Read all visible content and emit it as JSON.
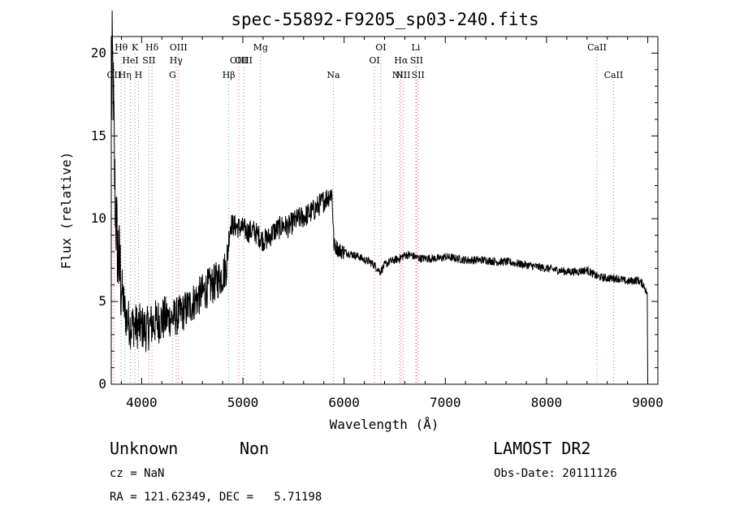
{
  "chart_data": {
    "type": "line",
    "title": "spec-55892-F9205_sp03-240.fits",
    "xlabel": "Wavelength (Å)",
    "ylabel": "Flux (relative)",
    "xlim": [
      3700,
      9100
    ],
    "ylim": [
      0,
      21
    ],
    "xticks": [
      4000,
      5000,
      6000,
      7000,
      8000,
      9000
    ],
    "yticks": [
      0,
      5,
      10,
      15,
      20
    ],
    "grid": false,
    "legend": "none",
    "line_color": "#000000",
    "marker_line_colors": {
      "emission": "#e06060",
      "absorption": "#909090"
    },
    "spectrum_anchors": {
      "x": [
        3700,
        3710,
        3720,
        3735,
        3750,
        3770,
        3790,
        3810,
        3830,
        3850,
        3870,
        3890,
        3920,
        3950,
        3980,
        4010,
        4050,
        4100,
        4150,
        4200,
        4250,
        4300,
        4350,
        4400,
        4450,
        4500,
        4550,
        4600,
        4650,
        4700,
        4750,
        4800,
        4840,
        4860,
        4880,
        4900,
        4950,
        5000,
        5050,
        5100,
        5150,
        5200,
        5250,
        5300,
        5350,
        5400,
        5450,
        5500,
        5550,
        5600,
        5650,
        5700,
        5750,
        5800,
        5850,
        5880,
        5900,
        5920,
        5950,
        6000,
        6050,
        6100,
        6150,
        6200,
        6250,
        6300,
        6340,
        6360,
        6400,
        6450,
        6500,
        6550,
        6600,
        6650,
        6700,
        6750,
        6800,
        6850,
        6900,
        6950,
        7000,
        7100,
        7200,
        7300,
        7400,
        7500,
        7600,
        7700,
        7800,
        7900,
        8000,
        8100,
        8200,
        8300,
        8400,
        8500,
        8600,
        8700,
        8800,
        8900,
        8960,
        8990,
        9000
      ],
      "y": [
        16.0,
        20.0,
        17.5,
        12.0,
        9.5,
        7.5,
        6.5,
        5.5,
        4.5,
        4.0,
        3.8,
        3.5,
        3.6,
        3.5,
        3.5,
        3.4,
        3.3,
        3.6,
        3.8,
        3.9,
        4.0,
        4.0,
        4.1,
        4.3,
        4.6,
        4.9,
        5.2,
        5.5,
        5.8,
        6.0,
        6.3,
        6.6,
        7.2,
        8.8,
        9.7,
        9.6,
        9.5,
        9.4,
        9.2,
        9.3,
        9.0,
        8.7,
        8.8,
        9.2,
        9.4,
        9.6,
        9.5,
        9.8,
        10.0,
        10.1,
        10.3,
        10.5,
        10.8,
        11.1,
        11.4,
        11.6,
        8.4,
        8.3,
        8.1,
        8.0,
        7.9,
        7.8,
        7.7,
        7.5,
        7.4,
        7.2,
        6.9,
        6.8,
        7.2,
        7.4,
        7.5,
        7.6,
        7.8,
        7.8,
        7.7,
        7.6,
        7.6,
        7.6,
        7.6,
        7.6,
        7.7,
        7.6,
        7.5,
        7.5,
        7.5,
        7.4,
        7.4,
        7.3,
        7.2,
        7.1,
        7.0,
        6.9,
        6.8,
        6.8,
        6.9,
        6.5,
        6.4,
        6.4,
        6.2,
        6.3,
        6.0,
        5.5,
        0.0
      ]
    },
    "spectral_lines": [
      {
        "label": "OII",
        "wavelength": 3727,
        "row": 3,
        "type": "emission"
      },
      {
        "label": "Hθ",
        "wavelength": 3798,
        "row": 1,
        "type": "absorption"
      },
      {
        "label": "Hη",
        "wavelength": 3835,
        "row": 3,
        "type": "absorption"
      },
      {
        "label": "HeI",
        "wavelength": 3889,
        "row": 2,
        "type": "absorption"
      },
      {
        "label": "K",
        "wavelength": 3934,
        "row": 1,
        "type": "absorption"
      },
      {
        "label": "H",
        "wavelength": 3969,
        "row": 3,
        "type": "absorption"
      },
      {
        "label": "SII",
        "wavelength": 4072,
        "row": 2,
        "type": "emission"
      },
      {
        "label": "Hδ",
        "wavelength": 4102,
        "row": 1,
        "type": "absorption"
      },
      {
        "label": "G",
        "wavelength": 4305,
        "row": 3,
        "type": "absorption"
      },
      {
        "label": "Hγ",
        "wavelength": 4341,
        "row": 2,
        "type": "absorption"
      },
      {
        "label": "OIII",
        "wavelength": 4364,
        "row": 1,
        "type": "emission"
      },
      {
        "label": "Hβ",
        "wavelength": 4861,
        "row": 3,
        "type": "absorption"
      },
      {
        "label": "OIII",
        "wavelength": 4960,
        "row": 2,
        "type": "emission"
      },
      {
        "label": "OIII",
        "wavelength": 5008,
        "row": 2,
        "type": "emission"
      },
      {
        "label": "Mg",
        "wavelength": 5175,
        "row": 1,
        "type": "absorption"
      },
      {
        "label": "Na",
        "wavelength": 5894,
        "row": 3,
        "type": "absorption"
      },
      {
        "label": "OI",
        "wavelength": 6300,
        "row": 2,
        "type": "emission"
      },
      {
        "label": "OI",
        "wavelength": 6363,
        "row": 1,
        "type": "emission"
      },
      {
        "label": "NII",
        "wavelength": 6548,
        "row": 3,
        "type": "emission"
      },
      {
        "label": "Hα",
        "wavelength": 6563,
        "row": 2,
        "type": "emission"
      },
      {
        "label": "NII",
        "wavelength": 6583,
        "row": 3,
        "type": "emission"
      },
      {
        "label": "Li",
        "wavelength": 6708,
        "row": 1,
        "type": "absorption"
      },
      {
        "label": "SII",
        "wavelength": 6716,
        "row": 2,
        "type": "emission"
      },
      {
        "label": "SII",
        "wavelength": 6731,
        "row": 3,
        "type": "emission"
      },
      {
        "label": "CaII",
        "wavelength": 8498,
        "row": 1,
        "type": "emission"
      },
      {
        "label": "CaII",
        "wavelength": 8662,
        "row": 3,
        "type": "emission"
      }
    ]
  },
  "info": {
    "class": "Unknown",
    "subclass": "Non",
    "survey": "LAMOST DR2",
    "cz": "cz = NaN",
    "obs_date": "Obs-Date: 20111126",
    "coords": "RA = 121.62349, DEC =   5.71198"
  }
}
